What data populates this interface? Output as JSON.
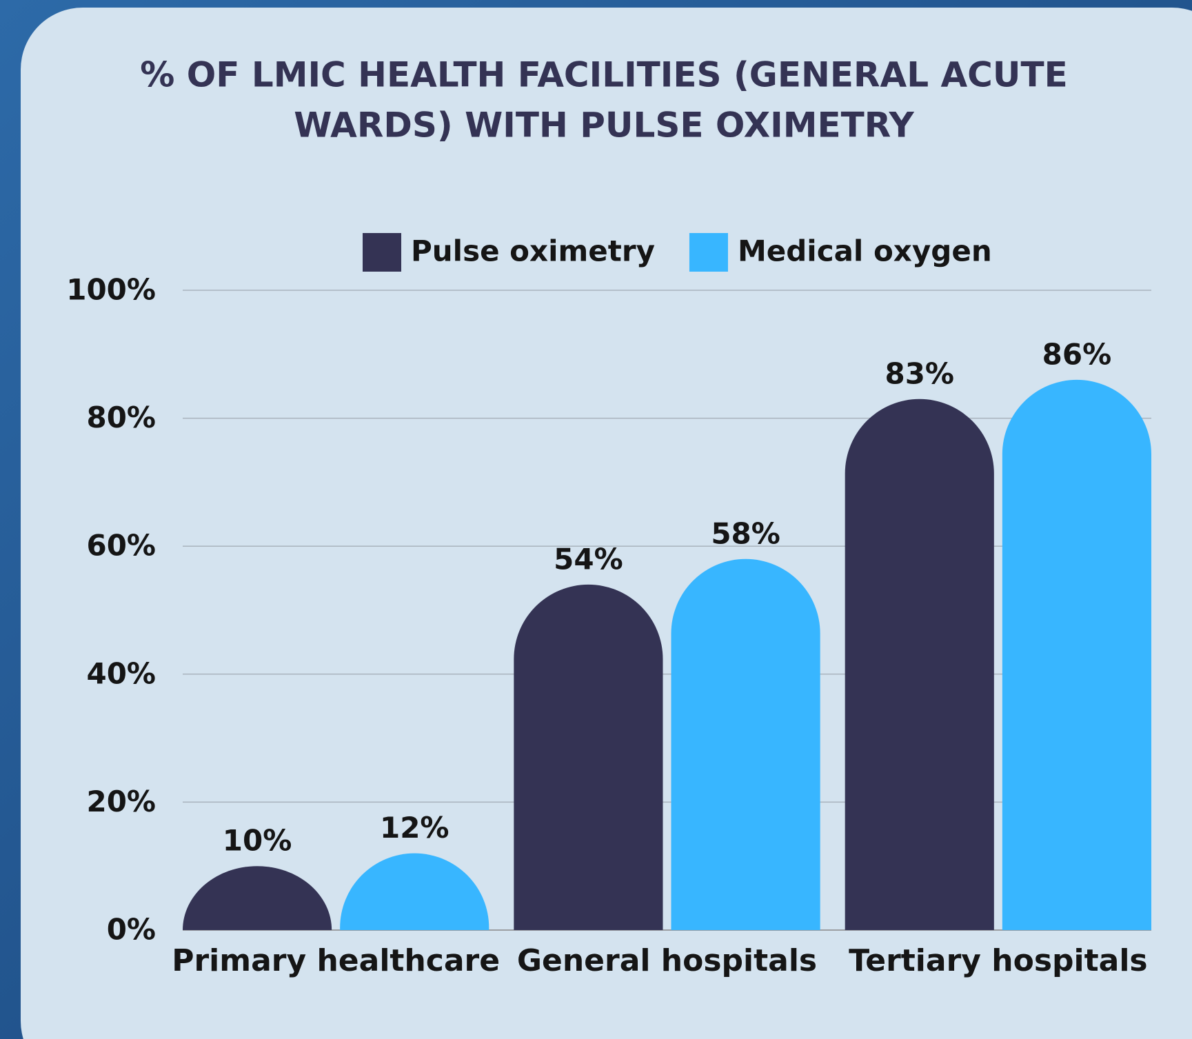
{
  "chart_data": {
    "type": "bar",
    "title": [
      "% OF LMIC HEALTH FACILITIES (GENERAL ACUTE",
      "WARDS) WITH PULSE OXIMETRY"
    ],
    "categories": [
      "Primary healthcare",
      "General hospitals",
      "Tertiary hospitals"
    ],
    "series": [
      {
        "name": "Pulse oximetry",
        "color": "#343354",
        "values": [
          10,
          54,
          83
        ],
        "value_labels": [
          "10%",
          "54%",
          "83%"
        ]
      },
      {
        "name": "Medical oxygen",
        "color": "#38b6ff",
        "values": [
          12,
          58,
          86
        ],
        "value_labels": [
          "12%",
          "58%",
          "86%"
        ]
      }
    ],
    "ylim": [
      0,
      100
    ],
    "yticks": [
      {
        "value": 0,
        "label": "0%"
      },
      {
        "value": 20,
        "label": "20%"
      },
      {
        "value": 40,
        "label": "40%"
      },
      {
        "value": 60,
        "label": "60%"
      },
      {
        "value": 80,
        "label": "80%"
      },
      {
        "value": 100,
        "label": "100%"
      }
    ],
    "grid": true,
    "legend": "top"
  }
}
